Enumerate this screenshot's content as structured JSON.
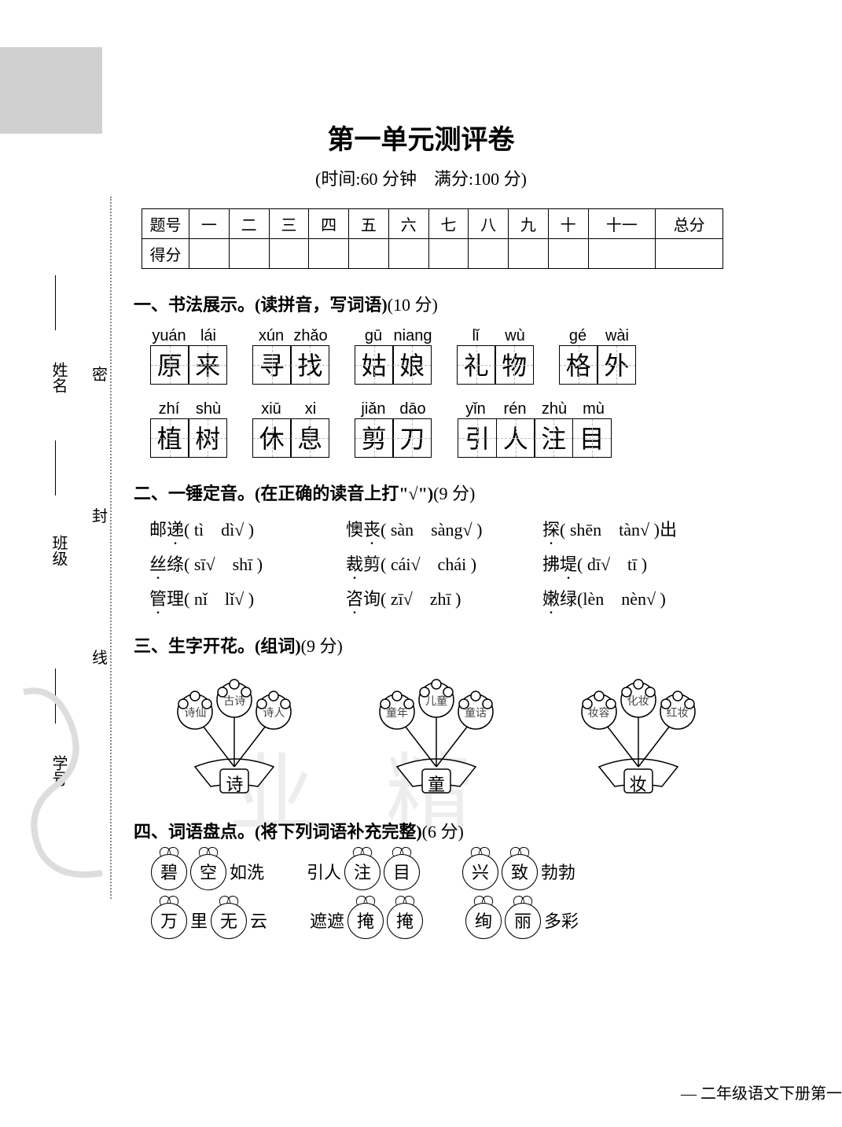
{
  "title": "第一单元测评卷",
  "subtitle": "(时间:60 分钟　满分:100 分)",
  "margin": {
    "name": "姓名",
    "class": "班级",
    "id": "学号"
  },
  "fold": {
    "mi": "密",
    "feng": "封",
    "xian": "线"
  },
  "score_table": {
    "row1": [
      "题号",
      "一",
      "二",
      "三",
      "四",
      "五",
      "六",
      "七",
      "八",
      "九",
      "十",
      "十一",
      "总分"
    ],
    "row2_head": "得分"
  },
  "sections": {
    "s1": {
      "title": "一、书法展示。(读拼音，写词语)",
      "pts": "(10 分)"
    },
    "s2": {
      "title": "二、一锤定音。(在正确的读音上打\"√\")",
      "pts": "(9 分)"
    },
    "s3": {
      "title": "三、生字开花。(组词)",
      "pts": "(9 分)"
    },
    "s4": {
      "title": "四、词语盘点。(将下列词语补充完整)",
      "pts": "(6 分)"
    }
  },
  "s1_rows": [
    [
      {
        "py": [
          "yuán",
          "lái"
        ],
        "ch": [
          "原",
          "来"
        ]
      },
      {
        "py": [
          "xún",
          "zhǎo"
        ],
        "ch": [
          "寻",
          "找"
        ]
      },
      {
        "py": [
          "gū",
          "niang"
        ],
        "ch": [
          "姑",
          "娘"
        ]
      },
      {
        "py": [
          "lǐ",
          "wù"
        ],
        "ch": [
          "礼",
          "物"
        ]
      },
      {
        "py": [
          "gé",
          "wài"
        ],
        "ch": [
          "格",
          "外"
        ]
      }
    ],
    [
      {
        "py": [
          "zhí",
          "shù"
        ],
        "ch": [
          "植",
          "树"
        ]
      },
      {
        "py": [
          "xiū",
          "xi"
        ],
        "ch": [
          "休",
          "息"
        ]
      },
      {
        "py": [
          "jiǎn",
          "dāo"
        ],
        "ch": [
          "剪",
          "刀"
        ]
      },
      {
        "py": [
          "yǐn",
          "rén",
          "zhù",
          "mù"
        ],
        "ch": [
          "引",
          "人",
          "注",
          "目"
        ]
      }
    ]
  ],
  "s2_rows": [
    [
      {
        "ch": "邮",
        "dot": "递",
        "opts": "( tì　dì√ )"
      },
      {
        "ch": "懊",
        "dot": "丧",
        "opts": "( sàn　sàng√ )"
      },
      {
        "dot": "探",
        "tail": "( shēn　tàn√ )出"
      }
    ],
    [
      {
        "dot": "丝",
        "ch": "绦",
        "opts": "( sī√　shī )"
      },
      {
        "dot": "裁",
        "ch": "剪",
        "opts": "( cái√　chái )"
      },
      {
        "ch": "拂",
        "dot": "堤",
        "opts": "( dī√　tī )"
      }
    ],
    [
      {
        "dot": "管",
        "ch": "理",
        "opts": "( nǐ　lǐ√ )"
      },
      {
        "dot": "咨",
        "ch": "询",
        "opts": "( zī√　zhī )"
      },
      {
        "dot": "嫩",
        "ch": "绿",
        "opts": "(lèn　nèn√ )"
      }
    ]
  ],
  "s3_flowers": [
    {
      "center": "诗",
      "petals": [
        "诗仙",
        "古诗",
        "诗人"
      ]
    },
    {
      "center": "童",
      "petals": [
        "童年",
        "儿童",
        "童话"
      ]
    },
    {
      "center": "妆",
      "petals": [
        "妆容",
        "化妆",
        "红妆"
      ]
    }
  ],
  "s4_rows": [
    [
      {
        "apples": [
          "碧",
          "空"
        ],
        "tail": "如洗"
      },
      {
        "pre": "引人",
        "apples": [
          "注",
          "目"
        ],
        "tail": ""
      },
      {
        "apples": [
          "兴",
          "致"
        ],
        "tail": "勃勃"
      }
    ],
    [
      {
        "apples": [
          "万",
          ""
        ],
        "mid": "里",
        "apples2": [
          "无",
          ""
        ],
        "tail": "云",
        "alt": true,
        "seq": [
          {
            "a": "万"
          },
          {
            "t": "里"
          },
          {
            "a": "无"
          },
          {
            "t": "云"
          }
        ]
      },
      {
        "pre": "遮遮",
        "apples": [
          "掩",
          "掩"
        ],
        "tail": ""
      },
      {
        "apples": [
          "绚",
          "丽"
        ],
        "tail": "多彩"
      }
    ]
  ],
  "s4_simple": [
    [
      {
        "seq": [
          {
            "a": "碧"
          },
          {
            "a": "空"
          },
          {
            "t": "如洗"
          }
        ]
      },
      {
        "seq": [
          {
            "t": "引人"
          },
          {
            "a": "注"
          },
          {
            "a": "目"
          }
        ]
      },
      {
        "seq": [
          {
            "a": "兴"
          },
          {
            "a": "致"
          },
          {
            "t": "勃勃"
          }
        ]
      }
    ],
    [
      {
        "seq": [
          {
            "a": "万"
          },
          {
            "t": "里"
          },
          {
            "a": "无"
          },
          {
            "t": "云"
          }
        ]
      },
      {
        "seq": [
          {
            "t": "遮遮"
          },
          {
            "a": "掩"
          },
          {
            "a": "掩"
          }
        ]
      },
      {
        "seq": [
          {
            "a": "绚"
          },
          {
            "a": "丽"
          },
          {
            "t": "多彩"
          }
        ]
      }
    ]
  ],
  "footer": "— 二年级语文下册第一",
  "colors": {
    "text": "#000000",
    "gray_block": "#d0d0d0",
    "dashed": "#bbbbbb",
    "watermark": "#dddddd"
  }
}
